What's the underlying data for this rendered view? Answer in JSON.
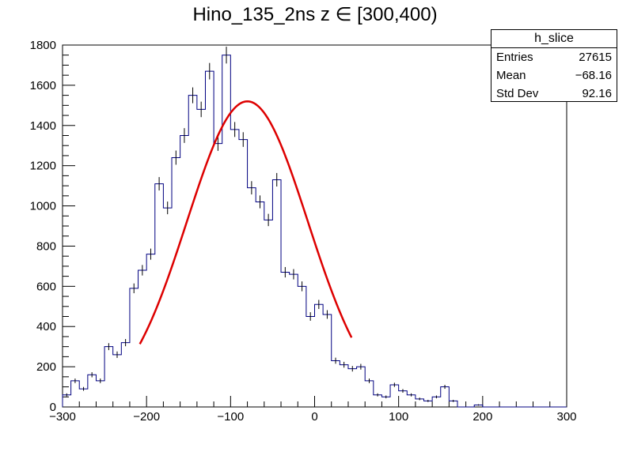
{
  "title": "Hino_135_2ns z  ∈ [300,400)",
  "statbox": {
    "name": "h_slice",
    "rows": [
      {
        "label": "Entries",
        "value": "27615"
      },
      {
        "label": "Mean",
        "value": "−68.16"
      },
      {
        "label": "Std Dev",
        "value": "92.16"
      }
    ]
  },
  "colors": {
    "histogram": "#000080",
    "fit": "#dd0000"
  },
  "chart_data": {
    "type": "bar",
    "title": "Hino_135_2ns z  ∈ [300,400)",
    "xlabel": "",
    "ylabel": "",
    "xlim": [
      -300,
      300
    ],
    "ylim": [
      0,
      1800
    ],
    "xticks": [
      -300,
      -200,
      -100,
      0,
      100,
      200,
      300
    ],
    "xtick_labels": [
      "−300",
      "−200",
      "−100",
      "0",
      "100",
      "200",
      "300"
    ],
    "yticks": [
      0,
      200,
      400,
      600,
      800,
      1000,
      1200,
      1400,
      1600,
      1800
    ],
    "bin_width": 10,
    "bin_start": -300,
    "values": [
      60,
      130,
      90,
      160,
      130,
      300,
      260,
      320,
      590,
      680,
      760,
      1110,
      990,
      1240,
      1350,
      1550,
      1480,
      1670,
      1310,
      1750,
      1380,
      1330,
      1090,
      1020,
      930,
      1130,
      670,
      660,
      600,
      450,
      510,
      460,
      230,
      210,
      190,
      200,
      130,
      60,
      50,
      110,
      80,
      60,
      40,
      30,
      50,
      100,
      30,
      0,
      0,
      10,
      0,
      0,
      0,
      0,
      0,
      0,
      0,
      0,
      0,
      0
    ],
    "grid": false,
    "fit": {
      "type": "gaussian",
      "amplitude": 1520,
      "mean": -80,
      "sigma": 72,
      "range": [
        -208,
        44
      ]
    }
  }
}
